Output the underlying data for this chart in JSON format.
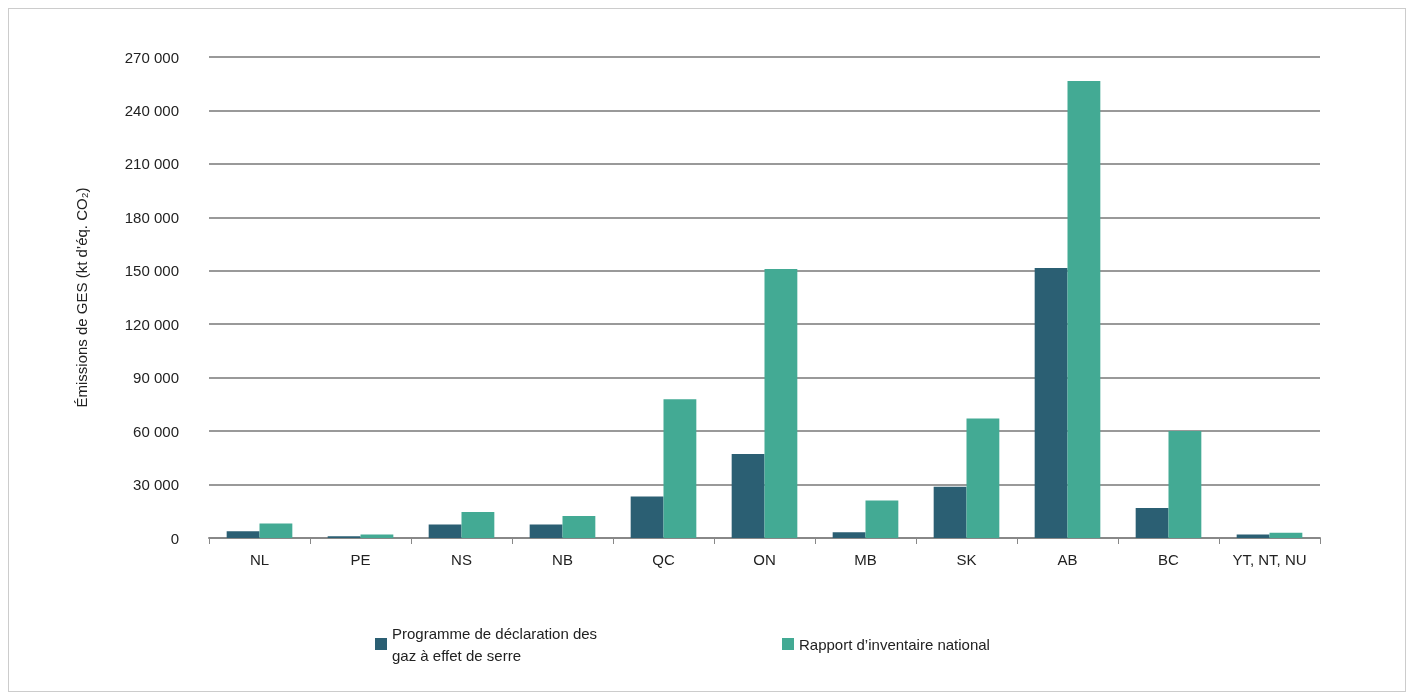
{
  "chart_data": {
    "type": "bar",
    "ylabel": "Émissions de GES (kt d’éq. CO₂)",
    "categories": [
      "NL",
      "PE",
      "NS",
      "NB",
      "QC",
      "ON",
      "MB",
      "SK",
      "AB",
      "BC",
      "YT, NT, NU"
    ],
    "series": [
      {
        "name": "Programme de déclaration des gaz à effet de serre",
        "color": "#2b5f73",
        "values": [
          3800,
          1000,
          7600,
          7600,
          23300,
          47100,
          3200,
          28700,
          151500,
          16800,
          2000
        ]
      },
      {
        "name": "Rapport d’inventaire national",
        "color": "#43aa94",
        "values": [
          8100,
          2000,
          14600,
          12400,
          77900,
          151000,
          21100,
          67100,
          256500,
          60000,
          3000
        ]
      }
    ],
    "ylim": [
      0,
      270000
    ],
    "yticks": [
      {
        "value": 0,
        "label": "0"
      },
      {
        "value": 30000,
        "label": "30 000"
      },
      {
        "value": 60000,
        "label": "60 000"
      },
      {
        "value": 90000,
        "label": "90 000"
      },
      {
        "value": 120000,
        "label": "120 000"
      },
      {
        "value": 150000,
        "label": "150 000"
      },
      {
        "value": 180000,
        "label": "180 000"
      },
      {
        "value": 210000,
        "label": "210 000"
      },
      {
        "value": 240000,
        "label": "240 000"
      },
      {
        "value": 270000,
        "label": "270 000"
      }
    ],
    "grid": "y",
    "legend": "bottom"
  }
}
